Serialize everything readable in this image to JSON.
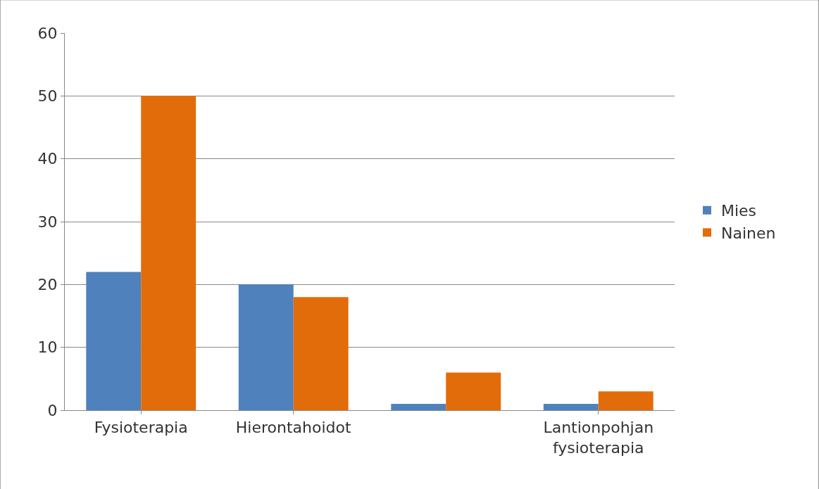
{
  "chart_data": {
    "type": "bar",
    "categories": [
      "Fysioterapia",
      "Hierontahoidot",
      null,
      "Lantionpohjan\nfysioterapia"
    ],
    "series": [
      {
        "name": "Mies",
        "color": "#4f81bd",
        "values": [
          22,
          20,
          1,
          1
        ]
      },
      {
        "name": "Nainen",
        "color": "#e36c0a",
        "values": [
          50,
          18,
          6,
          3
        ]
      }
    ],
    "ylim": [
      0,
      60
    ],
    "yticks": [
      0,
      10,
      20,
      30,
      40,
      50,
      60
    ],
    "grid": "y",
    "legend": "right"
  }
}
